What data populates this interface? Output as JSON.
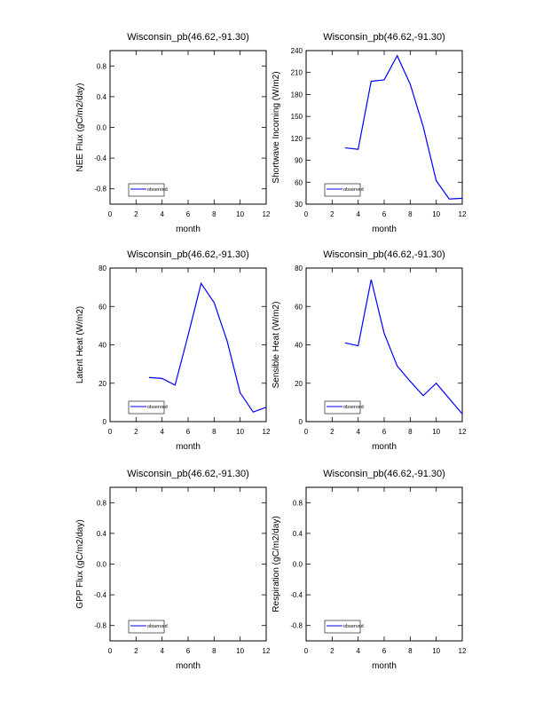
{
  "chart_data": [
    {
      "type": "line",
      "title": "Wisconsin_pb(46.62,-91.30)",
      "xlabel": "month",
      "ylabel": "NEE Flux (gC/m2/day)",
      "x": [],
      "series": [
        {
          "name": "observed",
          "color": "#0000ff",
          "values": []
        }
      ],
      "xlim": [
        0,
        12
      ],
      "xticks": [
        0,
        2,
        4,
        6,
        8,
        10,
        12
      ],
      "ylim": [
        -1,
        1
      ],
      "yticks": [
        -0.8,
        -0.4,
        {
          "value": 0,
          "label": "0.0"
        },
        0.4,
        0.8
      ],
      "legend": "lower left"
    },
    {
      "type": "line",
      "title": "Wisconsin_pb(46.62,-91.30)",
      "xlabel": "month",
      "ylabel": "Shortwave Incoming (W/m2)",
      "x": [
        3,
        4,
        5,
        6,
        7,
        8,
        9,
        10,
        11,
        12
      ],
      "series": [
        {
          "name": "observed",
          "color": "#0000ff",
          "values": [
            107,
            105,
            198,
            200,
            233,
            194,
            136,
            62,
            37,
            38
          ]
        }
      ],
      "xlim": [
        0,
        12
      ],
      "xticks": [
        0,
        2,
        4,
        6,
        8,
        10,
        12
      ],
      "ylim": [
        30,
        240
      ],
      "yticks": [
        30,
        60,
        90,
        120,
        150,
        180,
        210,
        240
      ],
      "legend": "lower left"
    },
    {
      "type": "line",
      "title": "Wisconsin_pb(46.62,-91.30)",
      "xlabel": "month",
      "ylabel": "Latent Heat (W/m2)",
      "x": [
        3,
        4,
        5,
        6,
        7,
        8,
        9,
        10,
        11,
        12
      ],
      "series": [
        {
          "name": "observed",
          "color": "#0000ff",
          "values": [
            23,
            22.5,
            19,
            45,
            72,
            62,
            42,
            15,
            5,
            7.5
          ]
        }
      ],
      "xlim": [
        0,
        12
      ],
      "xticks": [
        0,
        2,
        4,
        6,
        8,
        10,
        12
      ],
      "ylim": [
        0,
        80
      ],
      "yticks": [
        0,
        20,
        40,
        60,
        80
      ],
      "legend": "lower left"
    },
    {
      "type": "line",
      "title": "Wisconsin_pb(46.62,-91.30)",
      "xlabel": "month",
      "ylabel": "Sensible Heat (W/m2)",
      "x": [
        3,
        4,
        5,
        6,
        7,
        8,
        9,
        10,
        11,
        12
      ],
      "series": [
        {
          "name": "observed",
          "color": "#0000ff",
          "values": [
            41,
            39.5,
            74,
            46,
            29,
            21,
            13.5,
            20,
            12,
            4
          ]
        }
      ],
      "xlim": [
        0,
        12
      ],
      "xticks": [
        0,
        2,
        4,
        6,
        8,
        10,
        12
      ],
      "ylim": [
        0,
        80
      ],
      "yticks": [
        0,
        20,
        40,
        60,
        80
      ],
      "legend": "lower left"
    },
    {
      "type": "line",
      "title": "Wisconsin_pb(46.62,-91.30)",
      "xlabel": "month",
      "ylabel": "GPP Flux (gC/m2/day)",
      "x": [],
      "series": [
        {
          "name": "observed",
          "color": "#0000ff",
          "values": []
        }
      ],
      "xlim": [
        0,
        12
      ],
      "xticks": [
        0,
        2,
        4,
        6,
        8,
        10,
        12
      ],
      "ylim": [
        -1,
        1
      ],
      "yticks": [
        -0.8,
        -0.4,
        {
          "value": 0,
          "label": "0.0"
        },
        0.4,
        0.8
      ],
      "legend": "lower left"
    },
    {
      "type": "line",
      "title": "Wisconsin_pb(46.62,-91.30)",
      "xlabel": "month",
      "ylabel": "Respiration (gC/m2/day)",
      "x": [],
      "series": [
        {
          "name": "observed",
          "color": "#0000ff",
          "values": []
        }
      ],
      "xlim": [
        0,
        12
      ],
      "xticks": [
        0,
        2,
        4,
        6,
        8,
        10,
        12
      ],
      "ylim": [
        -1,
        1
      ],
      "yticks": [
        -0.8,
        -0.4,
        {
          "value": 0,
          "label": "0.0"
        },
        0.4,
        0.8
      ],
      "legend": "lower left"
    }
  ]
}
